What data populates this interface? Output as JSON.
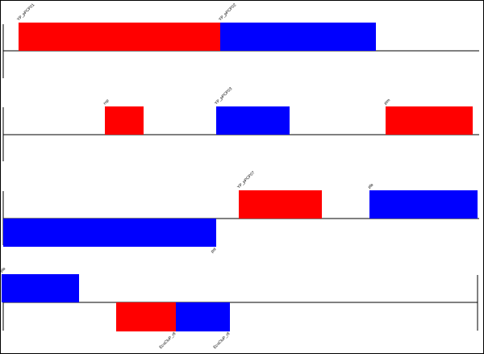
{
  "rows": [
    {
      "features": [
        {
          "label": "YP_pPCP01"
        },
        {
          "label": "YP_pPCP02"
        }
      ]
    },
    {
      "features": [
        {
          "label": "rop"
        },
        {
          "label": "YP_pPCP03"
        },
        {
          "label": "pim"
        }
      ]
    },
    {
      "features": [
        {
          "label": "YP_pPCP07"
        },
        {
          "label": "pla"
        },
        {
          "label": "pst"
        }
      ]
    },
    {
      "features": [
        {
          "label": "pla"
        },
        {
          "label": "EcoCluP_rfl"
        },
        {
          "label": "EcoCluP_rfl"
        }
      ]
    }
  ]
}
